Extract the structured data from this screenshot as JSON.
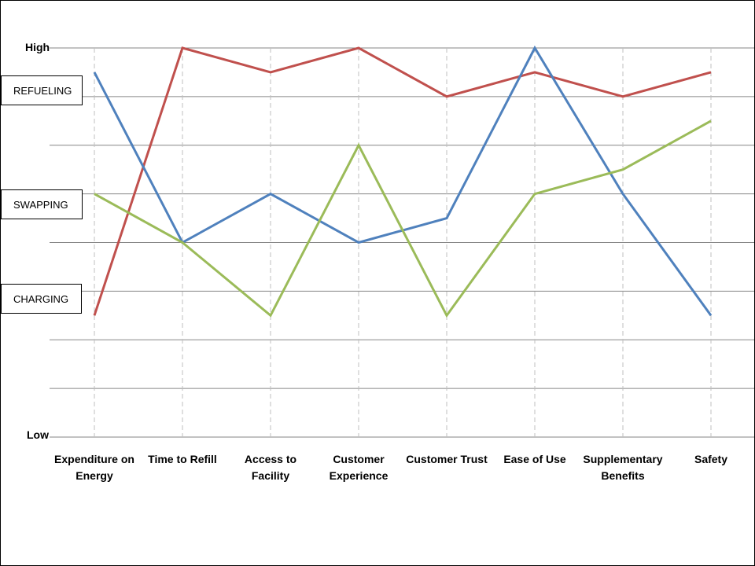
{
  "chart_data": {
    "type": "line",
    "title": "",
    "xlabel": "",
    "ylabel": "",
    "y_top_label": "High",
    "y_bottom_label": "Low",
    "ylim": [
      0,
      8
    ],
    "grid": true,
    "categories": [
      [
        "Expenditure on",
        "Energy"
      ],
      [
        "Time to Refill"
      ],
      [
        "Access to",
        "Facility"
      ],
      [
        "Customer",
        "Experience"
      ],
      [
        "Customer Trust"
      ],
      [
        "Ease of Use"
      ],
      [
        "Supplementary",
        "Benefits"
      ],
      [
        "Safety"
      ]
    ],
    "series": [
      {
        "name": "REFUELING",
        "color": "#C0504D",
        "values": [
          2.5,
          8,
          7.5,
          8,
          7,
          7.5,
          7,
          7.5
        ]
      },
      {
        "name": "SWAPPING",
        "color": "#4F81BD",
        "values": [
          7.5,
          4,
          5,
          4,
          4.5,
          8,
          5,
          2.5
        ]
      },
      {
        "name": "CHARGING",
        "color": "#9BBB59",
        "values": [
          5,
          4,
          2.5,
          6,
          2.5,
          5,
          5.5,
          6.5
        ]
      }
    ],
    "legend_placement": "left"
  }
}
